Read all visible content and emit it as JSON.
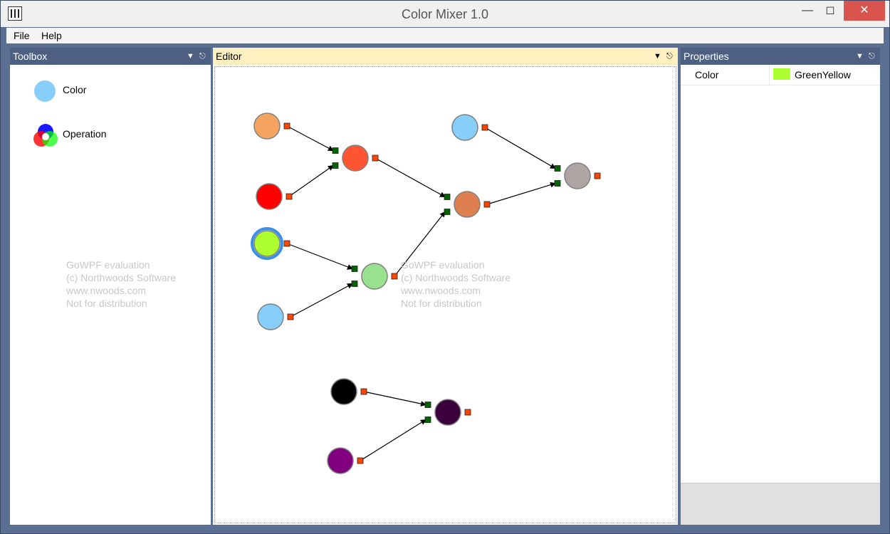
{
  "window": {
    "title": "Color Mixer 1.0"
  },
  "menu": {
    "file_label": "File",
    "help_label": "Help"
  },
  "toolbox": {
    "title": "Toolbox",
    "items": [
      {
        "label": "Color"
      },
      {
        "label": "Operation"
      }
    ]
  },
  "editor": {
    "title": "Editor"
  },
  "properties": {
    "title": "Properties",
    "rows": [
      {
        "name": "Color",
        "value": "GreenYellow",
        "swatch": "#adff2f"
      }
    ]
  },
  "watermark": {
    "line1": "GoWPF evaluation",
    "line2": "(c) Northwoods Software",
    "line3": "www.nwoods.com",
    "line4": "Not for distribution"
  },
  "diagram": {
    "nodes": [
      {
        "id": "c1",
        "kind": "color",
        "color": "#f4a460"
      },
      {
        "id": "c2",
        "kind": "color",
        "color": "#ff0000"
      },
      {
        "id": "c3",
        "kind": "color",
        "color": "#adff2f",
        "selected": true
      },
      {
        "id": "c4",
        "kind": "color",
        "color": "#87cefa"
      },
      {
        "id": "c5",
        "kind": "color",
        "color": "#87cefa"
      },
      {
        "id": "c6",
        "kind": "color",
        "color": "#000000"
      },
      {
        "id": "c7",
        "kind": "color",
        "color": "#800080"
      },
      {
        "id": "o1",
        "kind": "operation",
        "color": "#ff5533"
      },
      {
        "id": "o2",
        "kind": "operation",
        "color": "#98e28f"
      },
      {
        "id": "o3",
        "kind": "operation",
        "color": "#dd7f4f"
      },
      {
        "id": "o4",
        "kind": "operation",
        "color": "#b1a4a4"
      },
      {
        "id": "o5",
        "kind": "operation",
        "color": "#3b003b"
      }
    ],
    "links": [
      {
        "from": "c1",
        "to": "o1",
        "port": 0
      },
      {
        "from": "c2",
        "to": "o1",
        "port": 1
      },
      {
        "from": "c3",
        "to": "o2",
        "port": 0
      },
      {
        "from": "c4",
        "to": "o2",
        "port": 1
      },
      {
        "from": "o1",
        "to": "o3",
        "port": 0
      },
      {
        "from": "o2",
        "to": "o3",
        "port": 1
      },
      {
        "from": "c5",
        "to": "o4",
        "port": 0
      },
      {
        "from": "o3",
        "to": "o4",
        "port": 1
      },
      {
        "from": "c6",
        "to": "o5",
        "port": 0
      },
      {
        "from": "c7",
        "to": "o5",
        "port": 1
      }
    ],
    "colors": {
      "out_port": "#ff4400",
      "in_port": "#006400",
      "node_stroke": "#808080",
      "selection": "#3b8fe6"
    }
  }
}
